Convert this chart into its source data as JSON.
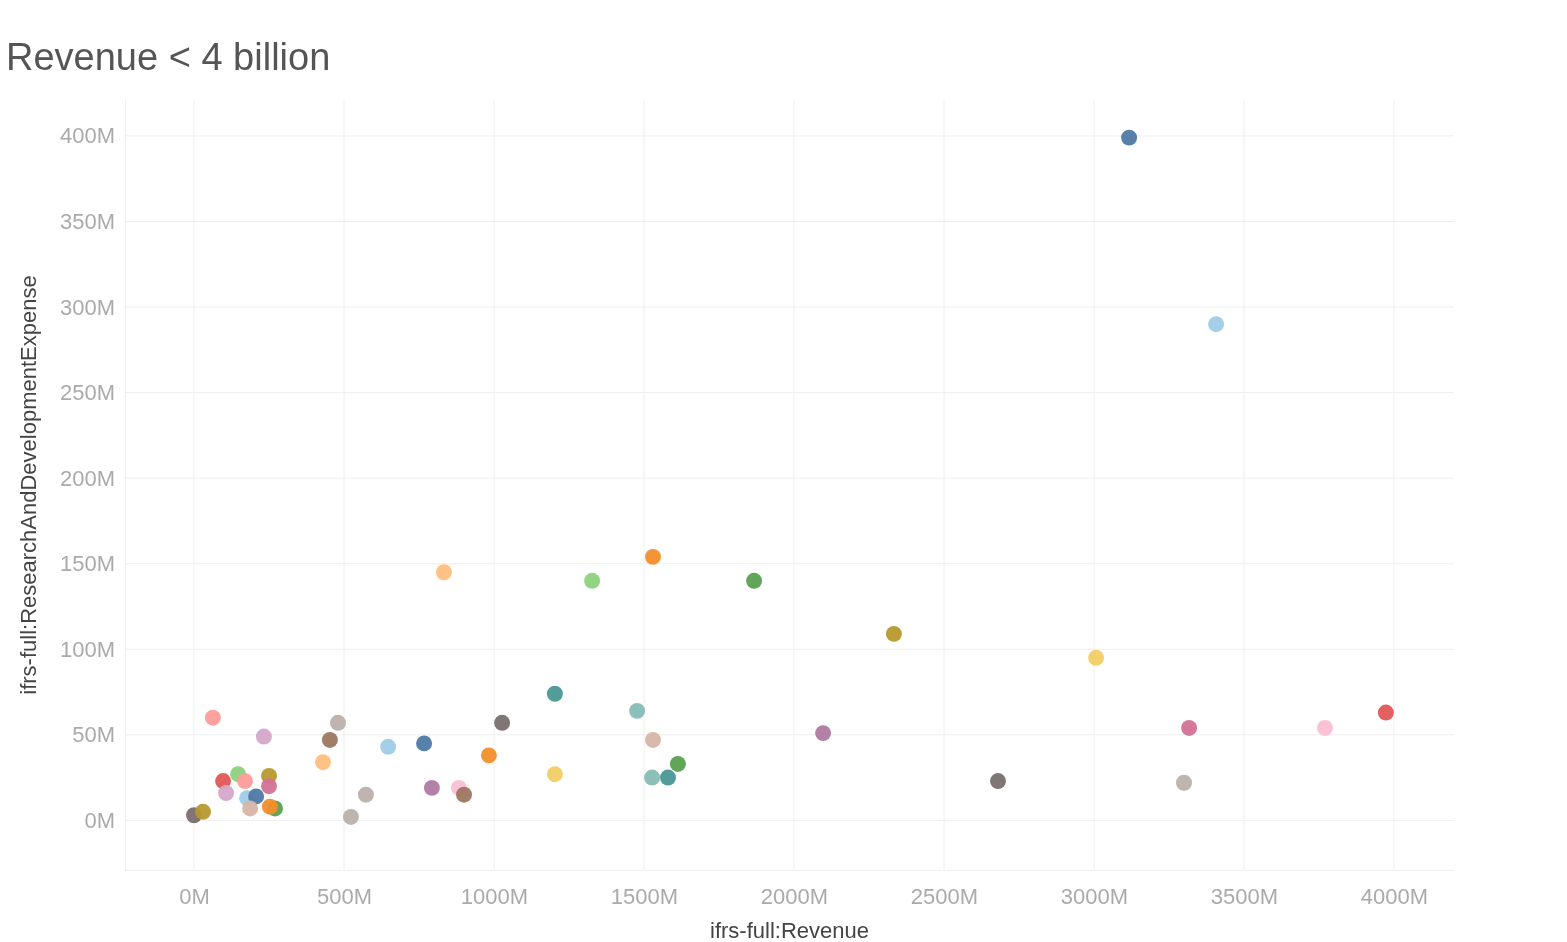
{
  "chart_data": {
    "type": "scatter",
    "title": "Revenue < 4 billion",
    "xlabel": "ifrs-full:Revenue",
    "ylabel": "ifrs-full:ResearchAndDevelopmentExpense",
    "xlim": [
      -230,
      4200
    ],
    "ylim": [
      -29,
      421
    ],
    "xticks": [
      {
        "value": 0,
        "label": "0M"
      },
      {
        "value": 500,
        "label": "500M"
      },
      {
        "value": 1000,
        "label": "1000M"
      },
      {
        "value": 1500,
        "label": "1500M"
      },
      {
        "value": 2000,
        "label": "2000M"
      },
      {
        "value": 2500,
        "label": "2500M"
      },
      {
        "value": 3000,
        "label": "3000M"
      },
      {
        "value": 3500,
        "label": "3500M"
      },
      {
        "value": 4000,
        "label": "4000M"
      }
    ],
    "yticks": [
      {
        "value": 0,
        "label": "0M"
      },
      {
        "value": 50,
        "label": "50M"
      },
      {
        "value": 100,
        "label": "100M"
      },
      {
        "value": 150,
        "label": "150M"
      },
      {
        "value": 200,
        "label": "200M"
      },
      {
        "value": 250,
        "label": "250M"
      },
      {
        "value": 300,
        "label": "300M"
      },
      {
        "value": 350,
        "label": "350M"
      },
      {
        "value": 400,
        "label": "400M"
      }
    ],
    "grid": true,
    "marker": "circle",
    "series": [
      {
        "x": [
          3117,
          3407,
          833,
          1327,
          1530,
          1867,
          2333,
          3007,
          1203,
          1477,
          1027,
          1530,
          2097,
          3317,
          3770,
          3973,
          1613,
          1580,
          1527,
          1203,
          983,
          767,
          647,
          793,
          883,
          900,
          573,
          523,
          480,
          453,
          430,
          63,
          233,
          97,
          147,
          170,
          107,
          250,
          250,
          177,
          207,
          187,
          270,
          253,
          0,
          30,
          3300,
          2680
        ],
        "values": [
          399,
          290,
          145,
          140,
          154,
          140,
          109,
          95,
          74,
          64,
          57,
          47,
          51,
          54,
          54,
          63,
          33,
          25,
          25,
          27,
          38,
          45,
          43,
          19,
          19,
          15,
          15,
          2,
          57,
          47,
          34,
          60,
          49,
          23,
          27,
          23,
          16,
          26,
          20,
          13,
          14,
          7,
          7,
          8,
          3,
          5,
          22,
          23
        ],
        "colors": [
          "#4e79a7",
          "#a0cbe8",
          "#ffbe7d",
          "#8cd17d",
          "#f28e2b",
          "#59a14f",
          "#b6992d",
          "#f1ce63",
          "#499894",
          "#86bcb6",
          "#79706e",
          "#d7b5a6",
          "#b07aa1",
          "#d37295",
          "#fabfd2",
          "#e15759",
          "#59a14f",
          "#499894",
          "#86bcb6",
          "#f1ce63",
          "#f28e2b",
          "#4e79a7",
          "#a0cbe8",
          "#b07aa1",
          "#fabfd2",
          "#9d7660",
          "#bab0ac",
          "#bab0ac",
          "#bab0ac",
          "#9d7660",
          "#ffbe7d",
          "#ff9d9a",
          "#d4a6c8",
          "#e15759",
          "#8cd17d",
          "#ff9d9a",
          "#d4a6c8",
          "#b6992d",
          "#d37295",
          "#a0cbe8",
          "#4e79a7",
          "#d7b5a6",
          "#59a14f",
          "#f28e2b",
          "#79706e",
          "#b6992d",
          "#bab0ac",
          "#79706e"
        ]
      }
    ]
  }
}
